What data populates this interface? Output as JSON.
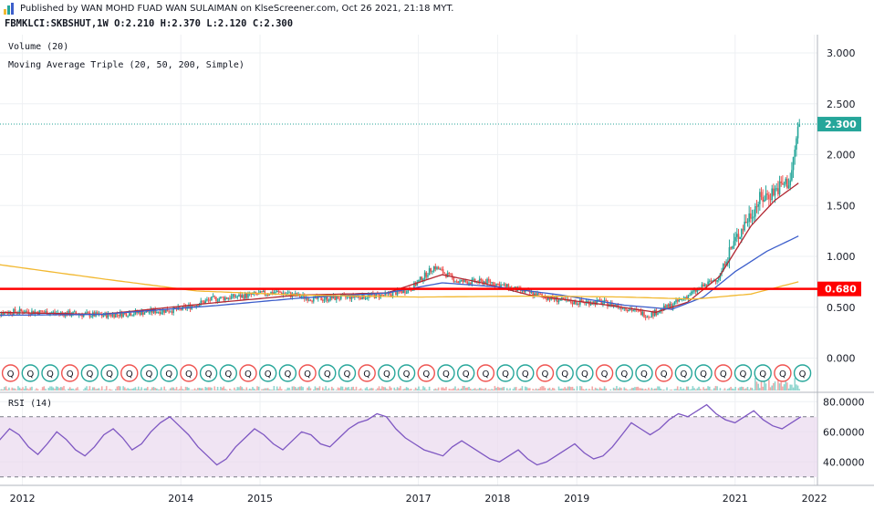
{
  "header": {
    "published": "Published by WAN MOHD FUAD WAN SULAIMAN on KlseScreener.com, Oct 26 2021, 21:18 MYT.",
    "symbol_line": "FBMKLCI:SKBSHUT,1W  O:2.210 H:2.370 L:2.120 C:2.300"
  },
  "indicators": {
    "volume": "Volume (20)",
    "ma": "Moving Average Triple (20, 50, 200, Simple)",
    "rsi": "RSI (14)"
  },
  "colors": {
    "up": "#26a69a",
    "down": "#ef5350",
    "ma20": "#b22833",
    "ma50": "#3c5ecb",
    "ma200": "#f2b830",
    "support": "#ff0000",
    "rsi": "#7e57c2",
    "rsi_band": "#ead9ee",
    "last_price": "#26a69a"
  },
  "chart_data": [
    {
      "type": "candlestick",
      "title": "FBMKLCI:SKBSHUT,1W",
      "y_ticks": [
        "3.000",
        "2.500",
        "2.000",
        "1.500",
        "1.000",
        "0.500",
        "0.000"
      ],
      "x_ticks": [
        "2012",
        "2014",
        "2015",
        "2017",
        "2018",
        "2019",
        "2021",
        "2022"
      ],
      "ylim": [
        -0.3,
        3.15
      ],
      "last_price": 2.3,
      "last_price_label": "2.300",
      "support_level": 0.68,
      "support_label": "0.680",
      "series": [
        {
          "name": "Price",
          "points": [
            [
              "2011.6",
              0.44
            ],
            [
              "2012.0",
              0.46
            ],
            [
              "2012.5",
              0.44
            ],
            [
              "2013.0",
              0.42
            ],
            [
              "2013.5",
              0.45
            ],
            [
              "2014.0",
              0.48
            ],
            [
              "2014.4",
              0.58
            ],
            [
              "2014.9",
              0.62
            ],
            [
              "2015.2",
              0.65
            ],
            [
              "2015.7",
              0.58
            ],
            [
              "2016.1",
              0.6
            ],
            [
              "2016.6",
              0.62
            ],
            [
              "2016.9",
              0.68
            ],
            [
              "2017.2",
              0.9
            ],
            [
              "2017.5",
              0.75
            ],
            [
              "2017.9",
              0.75
            ],
            [
              "2018.2",
              0.68
            ],
            [
              "2018.5",
              0.62
            ],
            [
              "2018.9",
              0.55
            ],
            [
              "2019.3",
              0.55
            ],
            [
              "2019.6",
              0.5
            ],
            [
              "2019.9",
              0.42
            ],
            [
              "2020.2",
              0.52
            ],
            [
              "2020.5",
              0.66
            ],
            [
              "2020.8",
              0.8
            ],
            [
              "2020.9",
              1.0
            ],
            [
              "2021.1",
              1.3
            ],
            [
              "2021.3",
              1.55
            ],
            [
              "2021.5",
              1.65
            ],
            [
              "2021.7",
              1.75
            ],
            [
              "2021.8",
              2.3
            ]
          ]
        },
        {
          "name": "MA20",
          "points": [
            [
              "2011.6",
              0.45
            ],
            [
              "2013.0",
              0.43
            ],
            [
              "2014.5",
              0.55
            ],
            [
              "2015.5",
              0.62
            ],
            [
              "2016.6",
              0.64
            ],
            [
              "2017.3",
              0.82
            ],
            [
              "2017.8",
              0.74
            ],
            [
              "2018.4",
              0.62
            ],
            [
              "2019.4",
              0.52
            ],
            [
              "2020.0",
              0.45
            ],
            [
              "2020.4",
              0.55
            ],
            [
              "2020.8",
              0.8
            ],
            [
              "2021.2",
              1.3
            ],
            [
              "2021.5",
              1.55
            ],
            [
              "2021.8",
              1.72
            ]
          ]
        },
        {
          "name": "MA50",
          "points": [
            [
              "2011.6",
              0.42
            ],
            [
              "2013.0",
              0.43
            ],
            [
              "2014.5",
              0.52
            ],
            [
              "2015.5",
              0.59
            ],
            [
              "2016.6",
              0.64
            ],
            [
              "2017.3",
              0.74
            ],
            [
              "2018.0",
              0.7
            ],
            [
              "2018.8",
              0.62
            ],
            [
              "2019.6",
              0.52
            ],
            [
              "2020.2",
              0.48
            ],
            [
              "2020.6",
              0.6
            ],
            [
              "2021.0",
              0.85
            ],
            [
              "2021.4",
              1.05
            ],
            [
              "2021.8",
              1.2
            ]
          ]
        },
        {
          "name": "MA200",
          "points": [
            [
              "2011.6",
              0.93
            ],
            [
              "2013.0",
              0.78
            ],
            [
              "2014.2",
              0.66
            ],
            [
              "2015.5",
              0.62
            ],
            [
              "2017.0",
              0.6
            ],
            [
              "2018.5",
              0.61
            ],
            [
              "2019.6",
              0.6
            ],
            [
              "2020.5",
              0.58
            ],
            [
              "2021.2",
              0.63
            ],
            [
              "2021.8",
              0.75
            ]
          ]
        }
      ]
    },
    {
      "type": "line",
      "title": "RSI (14)",
      "y_ticks": [
        "80.0000",
        "60.0000",
        "40.0000"
      ],
      "band": [
        30,
        70
      ],
      "ylim": [
        26,
        82
      ],
      "values": [
        48,
        55,
        62,
        58,
        50,
        45,
        52,
        60,
        55,
        48,
        44,
        50,
        58,
        62,
        56,
        48,
        52,
        60,
        66,
        70,
        64,
        58,
        50,
        44,
        38,
        42,
        50,
        56,
        62,
        58,
        52,
        48,
        54,
        60,
        58,
        52,
        50,
        56,
        62,
        66,
        68,
        72,
        70,
        62,
        56,
        52,
        48,
        46,
        44,
        50,
        54,
        50,
        46,
        42,
        40,
        44,
        48,
        42,
        38,
        40,
        44,
        48,
        52,
        46,
        42,
        44,
        50,
        58,
        66,
        62,
        58,
        62,
        68,
        72,
        70,
        74,
        78,
        72,
        68,
        66,
        70,
        74,
        68,
        64,
        62,
        66,
        70
      ]
    }
  ]
}
